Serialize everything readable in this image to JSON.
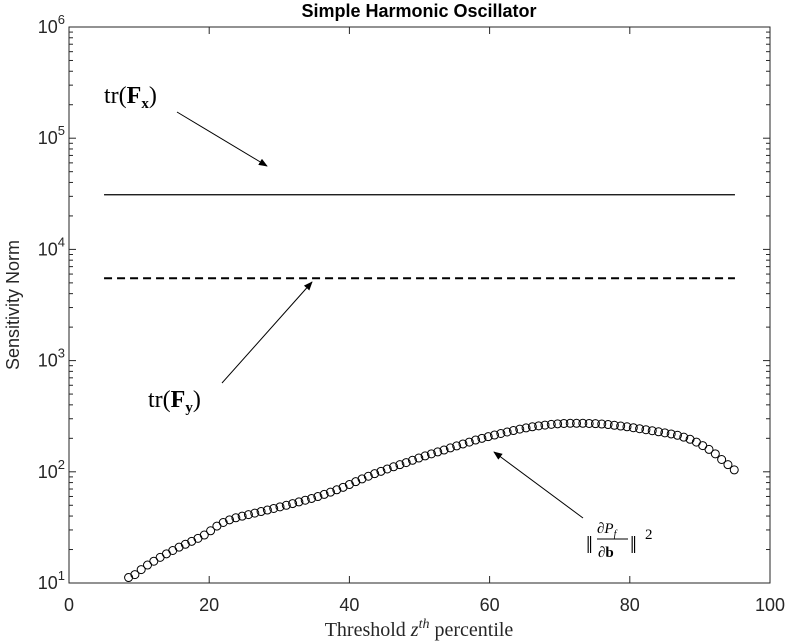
{
  "chart_data": {
    "type": "scatter",
    "title": "Simple Harmonic Oscillator",
    "xlabel": "Threshold z^th percentile",
    "ylabel": "Sensitivity Norm",
    "xlim": [
      0,
      100
    ],
    "ylim": [
      10,
      1000000
    ],
    "yscale": "log",
    "grid": false,
    "x_ticks": [
      "0",
      "20",
      "40",
      "60",
      "80",
      "100"
    ],
    "y_ticks": [
      {
        "base": "10",
        "exp": "1"
      },
      {
        "base": "10",
        "exp": "2"
      },
      {
        "base": "10",
        "exp": "3"
      },
      {
        "base": "10",
        "exp": "4"
      },
      {
        "base": "10",
        "exp": "5"
      },
      {
        "base": "10",
        "exp": "6"
      }
    ],
    "series": [
      {
        "style": "solid-line",
        "x": [
          5,
          95
        ],
        "y": [
          31000,
          31000
        ]
      },
      {
        "style": "dashed-line",
        "x": [
          5,
          95
        ],
        "y": [
          5500,
          5500
        ]
      },
      {
        "style": "open-circles",
        "x": [
          8.5,
          9.4,
          10.3,
          11.2,
          12.1,
          13.0,
          13.9,
          14.8,
          15.7,
          16.6,
          17.5,
          18.4,
          19.3,
          20.2,
          21.1,
          22.0,
          22.9,
          23.8,
          24.7,
          25.6,
          26.5,
          27.4,
          28.3,
          29.2,
          30.1,
          31.0,
          31.9,
          32.8,
          33.7,
          34.6,
          35.5,
          36.4,
          37.3,
          38.2,
          39.1,
          40.0,
          40.9,
          41.8,
          42.7,
          43.6,
          44.5,
          45.4,
          46.3,
          47.2,
          48.1,
          49.0,
          49.9,
          50.8,
          51.7,
          52.6,
          53.5,
          54.4,
          55.3,
          56.2,
          57.1,
          58.0,
          58.9,
          59.8,
          60.7,
          61.6,
          62.5,
          63.4,
          64.3,
          65.2,
          66.1,
          67.0,
          67.9,
          68.8,
          69.7,
          70.6,
          71.5,
          72.4,
          73.3,
          74.2,
          75.1,
          76.0,
          76.9,
          77.8,
          78.7,
          79.6,
          80.5,
          81.4,
          82.3,
          83.2,
          84.1,
          85.0,
          85.9,
          86.8,
          87.7,
          88.6,
          89.5,
          90.4,
          91.3,
          92.2,
          93.1,
          94.0,
          94.9
        ],
        "y": [
          11.2,
          11.9,
          13.2,
          14.5,
          15.7,
          17.0,
          18.3,
          19.6,
          21.0,
          22.3,
          23.7,
          25.2,
          27.0,
          29.5,
          32.5,
          35.0,
          37.0,
          38.6,
          39.9,
          41.2,
          42.5,
          43.9,
          45.3,
          46.8,
          48.4,
          50.0,
          51.8,
          53.6,
          55.5,
          57.6,
          59.9,
          62.6,
          65.6,
          68.9,
          72.5,
          76.8,
          81.5,
          86.3,
          91.2,
          96.2,
          101,
          106,
          111,
          116,
          121,
          127,
          133,
          139,
          145,
          151,
          157,
          164,
          171,
          178,
          185,
          193,
          200,
          207,
          214,
          221,
          228,
          235,
          242,
          248,
          254,
          259,
          263,
          267,
          270,
          272,
          273,
          273,
          273,
          272,
          271,
          269,
          266,
          262,
          258,
          254,
          249,
          244,
          239,
          234,
          229,
          224,
          219,
          213,
          205,
          196,
          185,
          172,
          159,
          145,
          129,
          116,
          104
        ]
      }
    ],
    "annotations": [
      {
        "text_main": "tr(",
        "bold": "F",
        "sub": "x",
        "close": ")"
      },
      {
        "text_main": "tr(",
        "bold": "F",
        "sub": "y",
        "close": ")"
      },
      {
        "num": "∂P",
        "num_sub": "f",
        "den": "∂b",
        "sup": "2"
      }
    ],
    "xlabel_parts": {
      "pre": "Threshold ",
      "var": "z",
      "sup": "th",
      "post": " percentile"
    }
  }
}
